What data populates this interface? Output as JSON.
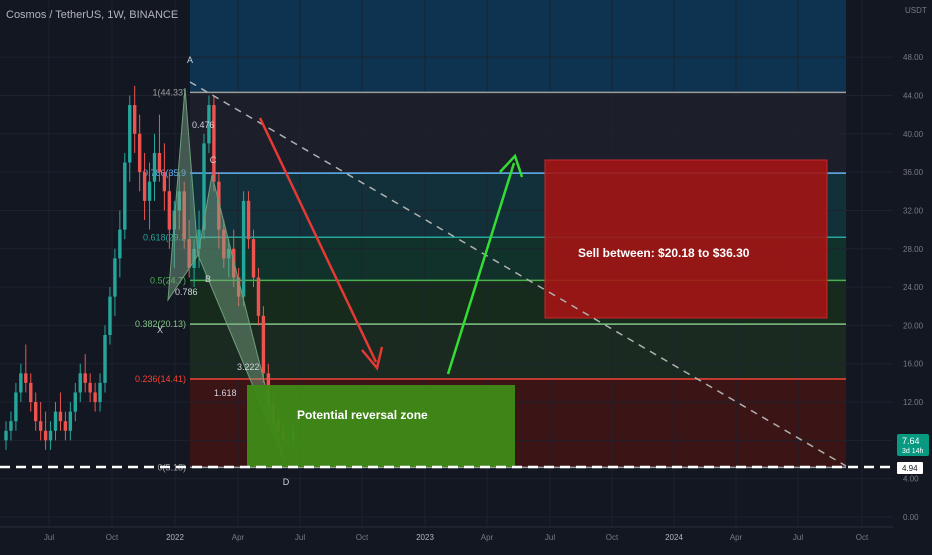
{
  "chart_data": {
    "type": "candlestick",
    "title": "Cosmos / TetherUS, 1W, BINANCE",
    "currency_label": "USDT",
    "y_ticks": [
      "48.00",
      "44.00",
      "40.00",
      "36.00",
      "32.00",
      "28.00",
      "24.00",
      "20.00",
      "16.00",
      "12.00",
      "8.00",
      "4.00",
      "0.00"
    ],
    "x_ticks": [
      "Jul",
      "Oct",
      "2022",
      "Apr",
      "Jul",
      "Oct",
      "2023",
      "Apr",
      "Jul",
      "Oct",
      "2024",
      "Apr",
      "Jul",
      "Oct"
    ],
    "ylim": [
      0,
      50
    ],
    "current_price": {
      "value": "7.64",
      "countdown": "3d 14h"
    },
    "support_price": {
      "value": "4.94"
    },
    "fib_levels": [
      {
        "label": "1(44.33)",
        "price": 44.33,
        "color": "#9e9e9e"
      },
      {
        "label": "0.786(35.9",
        "price": 35.9,
        "color": "#64b5f6"
      },
      {
        "label": "0.618(29.2",
        "price": 29.2,
        "color": "#26a69a"
      },
      {
        "label": "0.5(24.7)",
        "price": 24.7,
        "color": "#4caf50"
      },
      {
        "label": "0.382(20.13)",
        "price": 20.13,
        "color": "#81c784"
      },
      {
        "label": "0.236(14.41)",
        "price": 14.41,
        "color": "#f44336"
      },
      {
        "label": "0(5.18)",
        "price": 5.18,
        "color": "#9e9e9e"
      }
    ],
    "pattern_points": [
      {
        "label": "X"
      },
      {
        "label": "A"
      },
      {
        "label": "B"
      },
      {
        "label": "C"
      },
      {
        "label": "D"
      }
    ],
    "pattern_ratios": [
      "0.476",
      "0.786",
      "3.222",
      "1.618"
    ],
    "annotations": {
      "sell_zone": "Sell between: $20.18 to $36.30",
      "reversal_zone": "Potential reversal zone"
    },
    "colors": {
      "up": "#26a69a",
      "down": "#ef5350",
      "background": "#131722",
      "sell_box": "#a31414",
      "reversal_box": "#3e8a16"
    }
  }
}
